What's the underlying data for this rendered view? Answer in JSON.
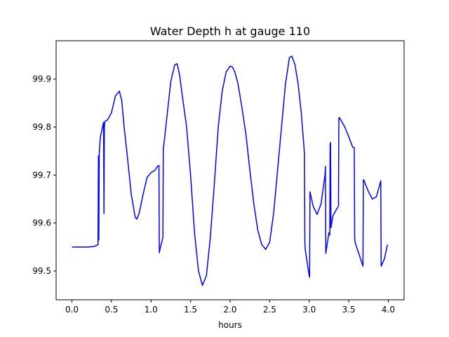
{
  "chart_data": {
    "type": "line",
    "title": "Water Depth h at gauge 110",
    "xlabel": "hours",
    "ylabel": "",
    "xlim": [
      -0.2,
      4.2
    ],
    "ylim": [
      99.44,
      99.98
    ],
    "grid": false,
    "legend": "none",
    "x_ticks": [
      0.0,
      0.5,
      1.0,
      1.5,
      2.0,
      2.5,
      3.0,
      3.5,
      4.0
    ],
    "x_tick_labels": [
      "0.0",
      "0.5",
      "1.0",
      "1.5",
      "2.0",
      "2.5",
      "3.0",
      "3.5",
      "4.0"
    ],
    "y_ticks": [
      99.5,
      99.6,
      99.7,
      99.8,
      99.9
    ],
    "y_tick_labels": [
      "99.5",
      "99.6",
      "99.7",
      "99.8",
      "99.9"
    ],
    "colors": {
      "line": "#0000ff",
      "axes": "#000000",
      "background": "#ffffff"
    },
    "series": [
      {
        "x": [
          0.0,
          0.1,
          0.2,
          0.28,
          0.33,
          0.335,
          0.34,
          0.345,
          0.35,
          0.36,
          0.4,
          0.405,
          0.41,
          0.415,
          0.42,
          0.45,
          0.5,
          0.55,
          0.6,
          0.63,
          0.66,
          0.7,
          0.75,
          0.8,
          0.82,
          0.85,
          0.9,
          0.95,
          1.0,
          1.05,
          1.08,
          1.1,
          1.105,
          1.11,
          1.15,
          1.155,
          1.16,
          1.2,
          1.25,
          1.3,
          1.33,
          1.36,
          1.4,
          1.45,
          1.5,
          1.55,
          1.6,
          1.65,
          1.7,
          1.75,
          1.8,
          1.85,
          1.9,
          1.95,
          2.0,
          2.03,
          2.06,
          2.1,
          2.15,
          2.2,
          2.25,
          2.3,
          2.35,
          2.4,
          2.45,
          2.5,
          2.55,
          2.6,
          2.65,
          2.7,
          2.75,
          2.78,
          2.82,
          2.86,
          2.9,
          2.94,
          2.945,
          2.95,
          3.0,
          3.005,
          3.01,
          3.05,
          3.1,
          3.15,
          3.2,
          3.205,
          3.21,
          3.25,
          3.26,
          3.265,
          3.27,
          3.275,
          3.28,
          3.3,
          3.35,
          3.37,
          3.375,
          3.38,
          3.4,
          3.45,
          3.5,
          3.55,
          3.57,
          3.575,
          3.58,
          3.62,
          3.68,
          3.685,
          3.69,
          3.75,
          3.8,
          3.85,
          3.9,
          3.905,
          3.91,
          3.95,
          3.99
        ],
        "y": [
          99.55,
          99.55,
          99.55,
          99.551,
          99.555,
          99.74,
          99.565,
          99.745,
          99.758,
          99.78,
          99.81,
          99.62,
          99.8,
          99.81,
          99.812,
          99.815,
          99.83,
          99.865,
          99.875,
          99.855,
          99.8,
          99.74,
          99.66,
          99.612,
          99.608,
          99.62,
          99.66,
          99.695,
          99.705,
          99.71,
          99.718,
          99.72,
          99.538,
          99.543,
          99.57,
          99.757,
          99.76,
          99.82,
          99.895,
          99.93,
          99.932,
          99.91,
          99.86,
          99.8,
          99.7,
          99.58,
          99.5,
          99.47,
          99.49,
          99.57,
          99.68,
          99.8,
          99.875,
          99.915,
          99.927,
          99.925,
          99.915,
          99.89,
          99.84,
          99.785,
          99.71,
          99.64,
          99.585,
          99.555,
          99.545,
          99.56,
          99.62,
          99.71,
          99.8,
          99.89,
          99.945,
          99.948,
          99.93,
          99.89,
          99.83,
          99.745,
          99.56,
          99.545,
          99.49,
          99.487,
          99.665,
          99.635,
          99.618,
          99.64,
          99.7,
          99.718,
          99.537,
          99.58,
          99.575,
          99.765,
          99.768,
          99.59,
          99.595,
          99.615,
          99.63,
          99.635,
          99.818,
          99.82,
          99.815,
          99.8,
          99.78,
          99.758,
          99.757,
          99.568,
          99.56,
          99.54,
          99.51,
          99.69,
          99.69,
          99.665,
          99.65,
          99.655,
          99.685,
          99.688,
          99.51,
          99.525,
          99.555
        ]
      }
    ]
  }
}
